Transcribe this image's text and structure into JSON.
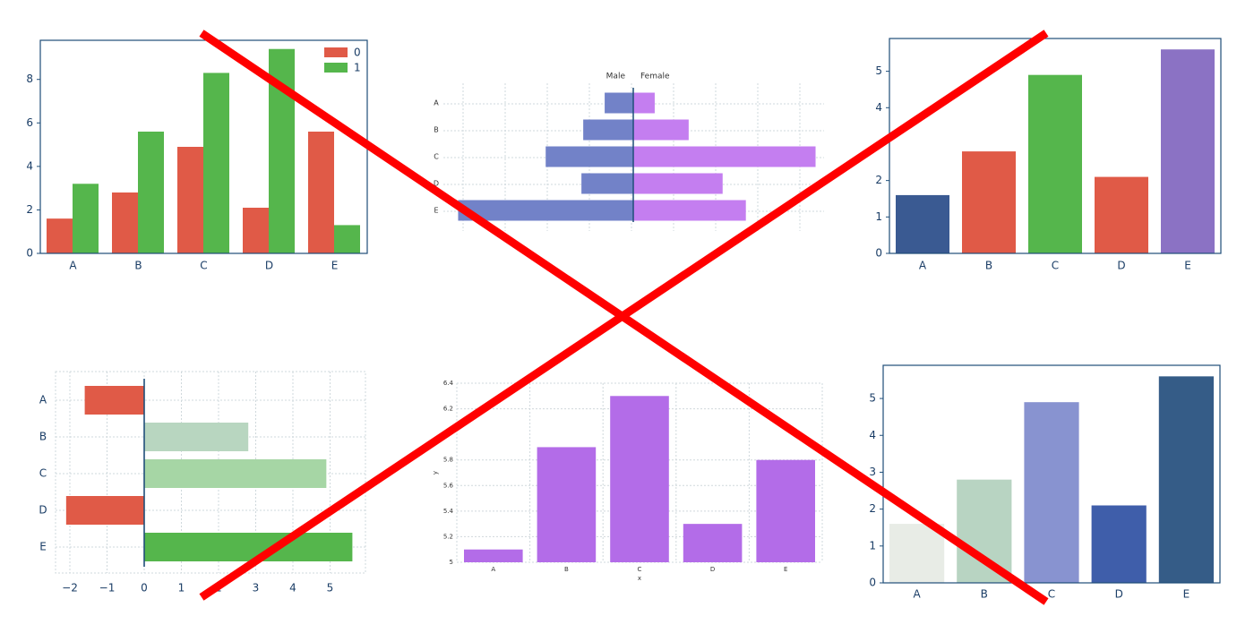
{
  "colors": {
    "red": "#e05a47",
    "green": "#55b64c",
    "blue_mid": "#7282c8",
    "purple": "#b36ce8",
    "axis": "#1f4e79",
    "grid": "#cfd8dc",
    "cross": "#ff0000"
  },
  "chart_data": [
    {
      "id": "grouped-bar",
      "type": "bar",
      "categories": [
        "A",
        "B",
        "C",
        "D",
        "E"
      ],
      "series": [
        {
          "name": "0",
          "values": [
            1.6,
            2.8,
            4.9,
            2.1,
            5.6
          ],
          "color": "#e05a47"
        },
        {
          "name": "1",
          "values": [
            3.2,
            5.6,
            8.3,
            9.4,
            1.3
          ],
          "color": "#55b64c"
        }
      ],
      "yticks": [
        "0",
        "2",
        "4",
        "6",
        "8"
      ],
      "ylim": [
        0,
        9.8
      ],
      "legend": "top-right",
      "grid": false
    },
    {
      "id": "population-pyramid",
      "type": "bar",
      "orientation": "horizontal",
      "categories": [
        "A",
        "B",
        "C",
        "D",
        "E"
      ],
      "series": [
        {
          "name": "Male",
          "values": [
            -1.6,
            -2.8,
            -4.9,
            -2.9,
            -9.8
          ],
          "color": "#7282c8"
        },
        {
          "name": "Female",
          "values": [
            1.2,
            3.1,
            10.2,
            5.0,
            6.3
          ],
          "color": "#c47ef0"
        }
      ],
      "column_labels": [
        "Male",
        "Female"
      ],
      "xlim": [
        -10.5,
        10.8
      ],
      "grid": true
    },
    {
      "id": "colored-bar",
      "type": "bar",
      "categories": [
        "A",
        "B",
        "C",
        "D",
        "E"
      ],
      "values": [
        1.6,
        2.8,
        4.9,
        2.1,
        5.6
      ],
      "bar_colors": [
        "#3a5a92",
        "#e05a47",
        "#55b64c",
        "#e05a47",
        "#8b72c4"
      ],
      "yticks": [
        "0",
        "1",
        "2",
        "4",
        "5"
      ],
      "ylim": [
        0,
        5.9
      ],
      "grid": false
    },
    {
      "id": "diverging-hbar",
      "type": "bar",
      "orientation": "horizontal",
      "categories": [
        "A",
        "B",
        "C",
        "D",
        "E"
      ],
      "values": [
        -1.6,
        2.8,
        4.9,
        -2.1,
        5.6
      ],
      "bar_colors": [
        "#e05a47",
        "#b8d6c0",
        "#a6d6a5",
        "#e05a47",
        "#55b64c"
      ],
      "xticks": [
        "−2",
        "−1",
        "0",
        "1",
        "2",
        "3",
        "4",
        "5"
      ],
      "xlim": [
        -2.3,
        5.9
      ],
      "grid": true
    },
    {
      "id": "purple-bar",
      "type": "bar",
      "categories": [
        "A",
        "B",
        "C",
        "D",
        "E"
      ],
      "values": [
        5.1,
        5.9,
        6.3,
        5.3,
        5.8
      ],
      "color": "#b36ce8",
      "yticks": [
        "5",
        "5.2",
        "5.4",
        "5.6",
        "5.8",
        "6.2",
        "6.4"
      ],
      "ylim": [
        5.0,
        6.4
      ],
      "xlabel": "x",
      "ylabel": "y",
      "grid": true
    },
    {
      "id": "gradient-bar",
      "type": "bar",
      "categories": [
        "A",
        "B",
        "C",
        "D",
        "E"
      ],
      "values": [
        1.6,
        2.8,
        4.9,
        2.1,
        5.6
      ],
      "bar_colors": [
        "#e8ece6",
        "#b8d4c2",
        "#8893d0",
        "#3f5eaa",
        "#355c87"
      ],
      "yticks": [
        "0",
        "1",
        "2",
        "3",
        "4",
        "5"
      ],
      "ylim": [
        0,
        5.9
      ],
      "grid": false
    }
  ]
}
